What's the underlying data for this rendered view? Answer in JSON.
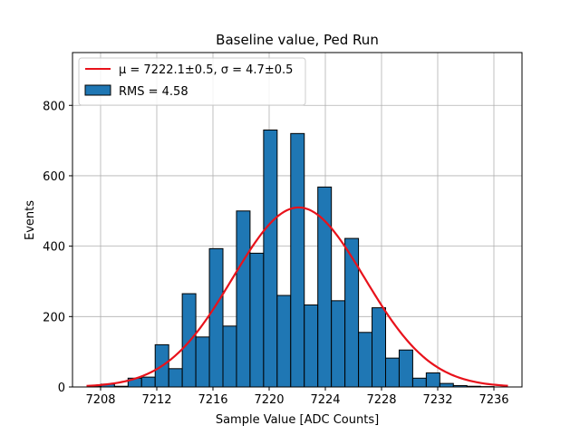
{
  "chart_data": {
    "type": "bar",
    "title": "Baseline value, Ped Run",
    "xlabel": "Sample Value [ADC Counts]",
    "ylabel": "Events",
    "xlim": [
      7206,
      7238
    ],
    "ylim": [
      0,
      950
    ],
    "xticks": [
      7208,
      7212,
      7216,
      7220,
      7224,
      7228,
      7232,
      7236
    ],
    "yticks": [
      0,
      200,
      400,
      600,
      800
    ],
    "grid": true,
    "legend_position": "top-left",
    "bin_width": 0.965,
    "bins": {
      "edges_start": 7207.06,
      "values": [
        3,
        8,
        2,
        25,
        28,
        120,
        52,
        265,
        142,
        393,
        173,
        500,
        380,
        730,
        260,
        720,
        233,
        568,
        245,
        422,
        155,
        225,
        82,
        105,
        25,
        40,
        10,
        4,
        2,
        1
      ]
    },
    "fit": {
      "name": "Gaussian fit",
      "mu": 7222.1,
      "sigma": 4.7,
      "amplitude": 510,
      "x_range": [
        7207,
        7237
      ],
      "color": "#e8121b"
    },
    "legend": [
      {
        "label": "μ = 7222.1±0.5, σ = 4.7±0.5",
        "kind": "line",
        "color": "#e8121b"
      },
      {
        "label": "RMS = 4.58",
        "kind": "patch",
        "color": "#1f77b4"
      }
    ],
    "colors": {
      "bar": "#1f77b4",
      "bar_edge": "#000000",
      "grid": "#b0b0b0"
    }
  }
}
